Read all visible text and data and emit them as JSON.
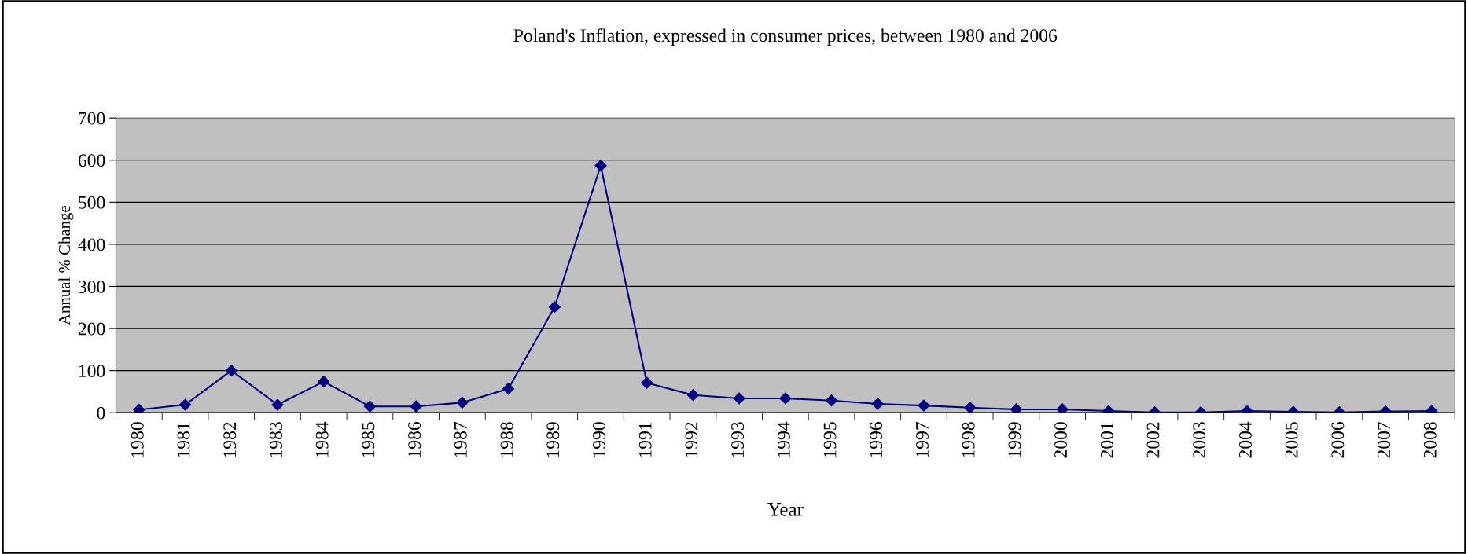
{
  "chart_data": {
    "type": "line",
    "title": "Poland's Inflation, expressed in consumer prices, between 1980 and 2006",
    "xlabel": "Year",
    "ylabel": "Annual % Change",
    "categories": [
      "1980",
      "1981",
      "1982",
      "1983",
      "1984",
      "1985",
      "1986",
      "1987",
      "1988",
      "1989",
      "1990",
      "1991",
      "1992",
      "1993",
      "1994",
      "1995",
      "1996",
      "1997",
      "1998",
      "1999",
      "2000",
      "2001",
      "2002",
      "2003",
      "2004",
      "2005",
      "2006",
      "2007",
      "2008"
    ],
    "series": [
      {
        "color": "#000080",
        "values": [
          7,
          19,
          100,
          19,
          74,
          15,
          15,
          24,
          57,
          251,
          587,
          71,
          42,
          34,
          34,
          29,
          21,
          17,
          12,
          8,
          8,
          4,
          1,
          1,
          4,
          2,
          1,
          3,
          4
        ]
      }
    ],
    "ylim": [
      0,
      700
    ],
    "yticks": [
      0,
      100,
      200,
      300,
      400,
      500,
      600,
      700
    ],
    "grid": "y",
    "marker": "diamond",
    "line_style": "solid"
  }
}
